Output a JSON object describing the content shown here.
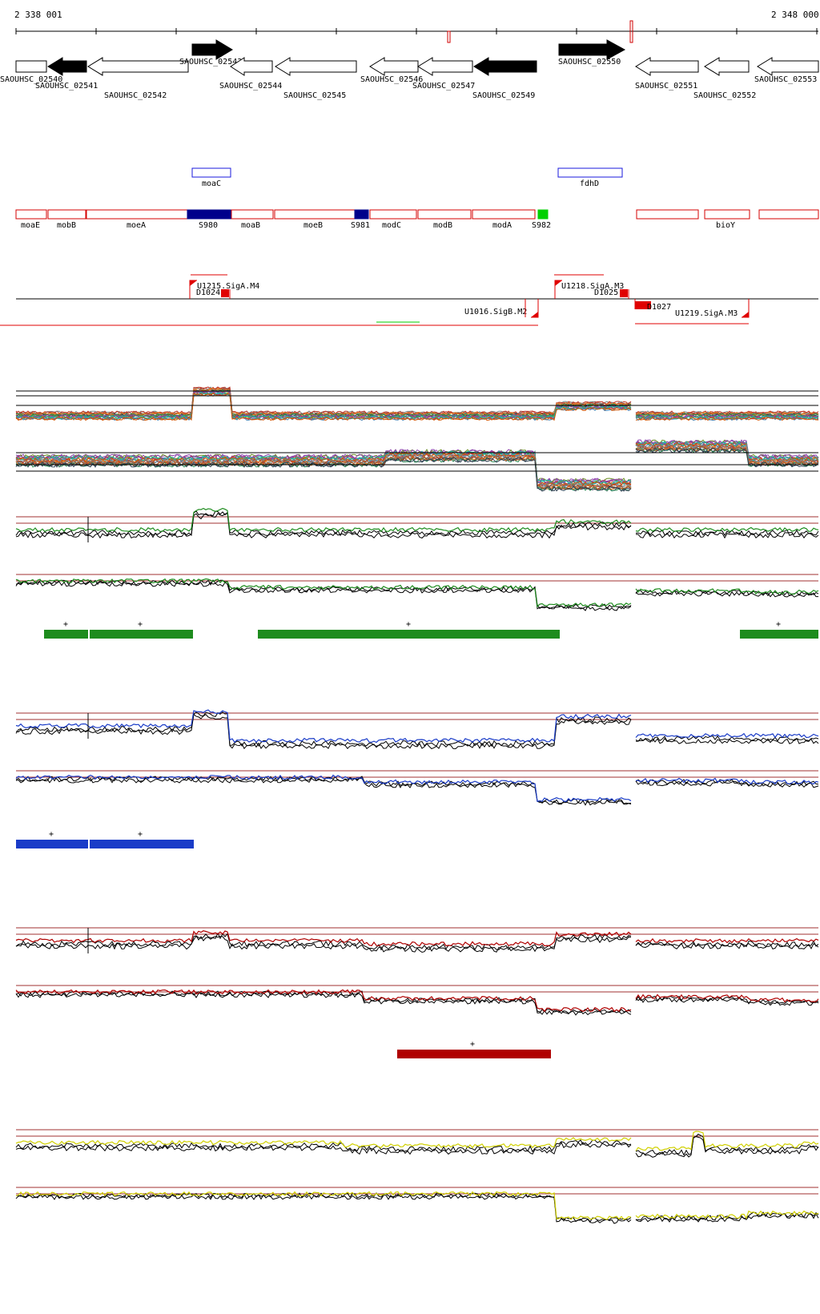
{
  "coordinates": {
    "start": "2 338 001",
    "end": "2 348 000"
  },
  "colors": {
    "gene_filled": "#000000",
    "gene_open": "#000000",
    "operon": "#d40000",
    "promoter": "#e00000",
    "srna_dark": "#00008b",
    "srna_green": "#00d000",
    "moa_box": "#1a1adc",
    "track_green": "#1e8c1e",
    "track_blue": "#1a3cc8",
    "track_red": "#b00000",
    "track_yellow": "#d0d000",
    "threshold": "#a03030"
  },
  "genes": [
    {
      "id": "SAOUHSC_02540",
      "label": "SAOUHSC_02540",
      "strand": "+",
      "filled": false
    },
    {
      "id": "SAOUHSC_02541",
      "label": "SAOUHSC_02541",
      "strand": "-",
      "filled": true
    },
    {
      "id": "SAOUHSC_02542",
      "label": "SAOUHSC_02542",
      "strand": "-",
      "filled": false
    },
    {
      "id": "SAOUHSC_02543",
      "label": "SAOUHSC_02543",
      "strand": "+",
      "filled": true
    },
    {
      "id": "SAOUHSC_02544",
      "label": "SAOUHSC_02544",
      "strand": "-",
      "filled": false
    },
    {
      "id": "SAOUHSC_02545",
      "label": "SAOUHSC_02545",
      "strand": "-",
      "filled": false
    },
    {
      "id": "SAOUHSC_02546",
      "label": "SAOUHSC_02546",
      "strand": "-",
      "filled": false
    },
    {
      "id": "SAOUHSC_02547",
      "label": "SAOUHSC_02547",
      "strand": "-",
      "filled": false
    },
    {
      "id": "SAOUHSC_02549",
      "label": "SAOUHSC_02549",
      "strand": "-",
      "filled": true
    },
    {
      "id": "SAOUHSC_02550",
      "label": "SAOUHSC_02550",
      "strand": "+",
      "filled": true
    },
    {
      "id": "SAOUHSC_02551",
      "label": "SAOUHSC_02551",
      "strand": "-",
      "filled": false
    },
    {
      "id": "SAOUHSC_02552",
      "label": "SAOUHSC_02552",
      "strand": "-",
      "filled": false
    },
    {
      "id": "SAOUHSC_02553",
      "label": "SAOUHSC_02553",
      "strand": "-",
      "filled": false
    }
  ],
  "moa_boxes": [
    {
      "label": "moaC"
    },
    {
      "label": "fdhD"
    }
  ],
  "annotations": [
    {
      "label": "moaE",
      "kind": "open"
    },
    {
      "label": "mobB",
      "kind": "open"
    },
    {
      "label": "moeA",
      "kind": "open"
    },
    {
      "label": "S980",
      "kind": "dark"
    },
    {
      "label": "moaB",
      "kind": "open"
    },
    {
      "label": "moeB",
      "kind": "open"
    },
    {
      "label": "S981",
      "kind": "dark"
    },
    {
      "label": "modC",
      "kind": "open"
    },
    {
      "label": "modB",
      "kind": "open"
    },
    {
      "label": "modA",
      "kind": "open"
    },
    {
      "label": "S982",
      "kind": "green"
    },
    {
      "label": "",
      "kind": "open"
    },
    {
      "label": "bioY",
      "kind": "open"
    },
    {
      "label": "",
      "kind": "open"
    }
  ],
  "promoters": [
    {
      "label": "U1215.SigA.M4"
    },
    {
      "label": "D1024"
    },
    {
      "label": "U1218.SigA.M3"
    },
    {
      "label": "D1025"
    },
    {
      "label": "U1016.SigB.M2"
    },
    {
      "label": "D1027"
    },
    {
      "label": "U1219.SigA.M3"
    }
  ],
  "segment_marks": [
    {
      "track": "green",
      "label": "+"
    },
    {
      "track": "green",
      "label": "+"
    },
    {
      "track": "green",
      "label": "+"
    },
    {
      "track": "green",
      "label": "+"
    },
    {
      "track": "blue",
      "label": "+"
    },
    {
      "track": "blue",
      "label": "+"
    },
    {
      "track": "red",
      "label": "+"
    }
  ]
}
